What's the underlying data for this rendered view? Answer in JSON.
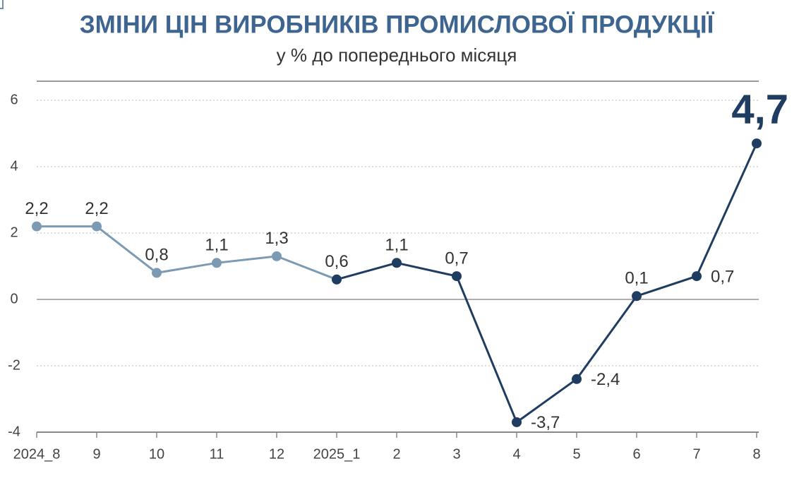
{
  "chart_data": {
    "type": "line",
    "title": "ЗМІНИ ЦІН ВИРОБНИКІВ ПРОМИСЛОВОЇ ПРОДУКЦІЇ",
    "subtitle": "у % до попереднього місяця",
    "categories": [
      "2024_8",
      "9",
      "10",
      "11",
      "12",
      "2025_1",
      "2",
      "3",
      "4",
      "5",
      "6",
      "7",
      "8"
    ],
    "series": [
      {
        "color": "#7d9ab3",
        "values": [
          2.2,
          2.2,
          0.8,
          1.1,
          1.3,
          0.6,
          null,
          null,
          null,
          null,
          null,
          null,
          null
        ],
        "value_labels": [
          "2,2",
          "2,2",
          "0,8",
          "1,1",
          "1,3",
          "0,6",
          null,
          null,
          null,
          null,
          null,
          null,
          null
        ]
      },
      {
        "color": "#1f3d60",
        "values": [
          null,
          null,
          null,
          null,
          null,
          0.6,
          1.1,
          0.7,
          -3.7,
          -2.4,
          0.1,
          0.7,
          4.7
        ],
        "value_labels": [
          null,
          null,
          null,
          null,
          null,
          null,
          "1,1",
          "0,7",
          "-3,7",
          "-2,4",
          "0,1",
          "0,7",
          "4,7"
        ]
      }
    ],
    "ylim": [
      -4,
      6
    ],
    "yticks": [
      -4,
      -2,
      0,
      2,
      4,
      6
    ],
    "grid": true
  }
}
